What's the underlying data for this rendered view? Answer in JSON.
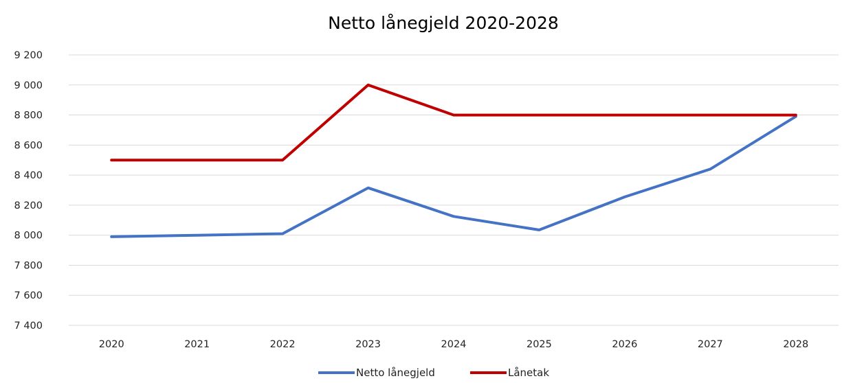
{
  "chart_data": {
    "type": "line",
    "title": "Netto lånegjeld 2020-2028",
    "xlabel": "",
    "ylabel": "",
    "categories": [
      "2020",
      "2021",
      "2022",
      "2023",
      "2024",
      "2025",
      "2026",
      "2027",
      "2028"
    ],
    "y_ticks": [
      "7 400",
      "7 600",
      "7 800",
      "8 000",
      "8 200",
      "8 400",
      "8 600",
      "8 800",
      "9 000",
      "9 200"
    ],
    "ylim": [
      7400,
      9200
    ],
    "grid": true,
    "legend_position": "bottom",
    "series": [
      {
        "name": "Netto lånegjeld",
        "color": "#4472c4",
        "values": [
          7990,
          8000,
          8010,
          8315,
          8125,
          8035,
          8255,
          8440,
          8790
        ]
      },
      {
        "name": "Lånetak",
        "color": "#c00000",
        "values": [
          8500,
          8500,
          8500,
          9000,
          8800,
          8800,
          8800,
          8800,
          8800
        ]
      }
    ]
  }
}
